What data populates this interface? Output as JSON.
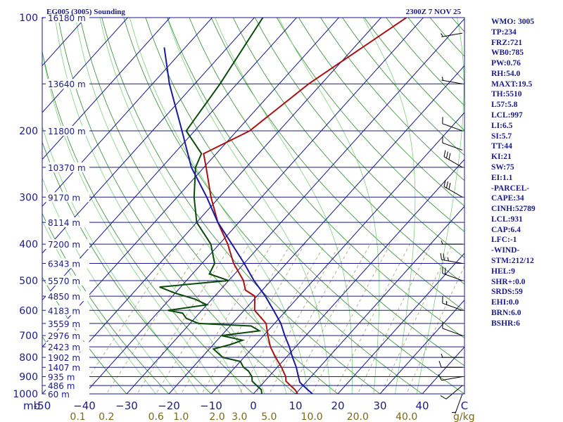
{
  "header": {
    "station": "EG005 (3005) Sounding",
    "datetime": "2300Z  7 NOV 25"
  },
  "indices": [
    "WMO: 3005",
    "TP:234",
    "FRZ:721",
    "WB0:785",
    "PW:0.76",
    "RH:54.0",
    "MAXT:19.5",
    "TH:5510",
    "L57:5.8",
    "LCL:997",
    "LI:6.5",
    "SI:5.7",
    "TT:44",
    "KI:21",
    "SW:75",
    "EI:1.1",
    "-PARCEL-",
    "CAPE:34",
    "CINH:52789",
    "LCL:931",
    "CAP:6.4",
    "LFC:-1",
    "-WIND-",
    "STM:212/12",
    "HEL:9",
    "SHR+:0.0",
    "SRDS:59",
    "EHI:0.0",
    "BRN:6.0",
    "BSHR:6"
  ],
  "chart_data": {
    "type": "line",
    "title": "EG005 (3005) Sounding",
    "pressure_unit": "mb",
    "mixing_ratio_unit": "g/kg",
    "xlim": [
      -50,
      50
    ],
    "ylim": [
      1000,
      100
    ],
    "temperature_ticks": [
      -50,
      -40,
      -30,
      -20,
      -10,
      0,
      10,
      20,
      30,
      40,
      50
    ],
    "temperature_tick_labels": [
      "-50",
      "−40",
      "−30",
      "−20",
      "−10",
      "0",
      "10",
      "20",
      "30",
      "40",
      "C"
    ],
    "pressure_ticks": [
      {
        "p": 100,
        "label": "100"
      },
      {
        "p": 200,
        "label": "200"
      },
      {
        "p": 300,
        "label": "300"
      },
      {
        "p": 400,
        "label": "400"
      },
      {
        "p": 500,
        "label": "500"
      },
      {
        "p": 600,
        "label": "600"
      },
      {
        "p": 700,
        "label": "700"
      },
      {
        "p": 800,
        "label": "800"
      },
      {
        "p": 900,
        "label": "900"
      },
      {
        "p": 1000,
        "label": "1000"
      }
    ],
    "height_levels": [
      {
        "p": 100,
        "label": "16180 m"
      },
      {
        "p": 150,
        "label": "13640 m"
      },
      {
        "p": 200,
        "label": "11800 m"
      },
      {
        "p": 250,
        "label": "10370 m"
      },
      {
        "p": 300,
        "label": "9170 m"
      },
      {
        "p": 350,
        "label": "8114 m"
      },
      {
        "p": 400,
        "label": "7200 m"
      },
      {
        "p": 450,
        "label": "6343 m"
      },
      {
        "p": 500,
        "label": "5570 m"
      },
      {
        "p": 550,
        "label": "4850 m"
      },
      {
        "p": 600,
        "label": "4183 m"
      },
      {
        "p": 650,
        "label": "3559 m"
      },
      {
        "p": 700,
        "label": "2976 m"
      },
      {
        "p": 750,
        "label": "2423 m"
      },
      {
        "p": 800,
        "label": "1902 m"
      },
      {
        "p": 850,
        "label": "1407 m"
      },
      {
        "p": 900,
        "label": "935 m"
      },
      {
        "p": 950,
        "label": "486 m"
      },
      {
        "p": 1000,
        "label": "60 m"
      }
    ],
    "mixing_ratio_labels": [
      {
        "w": 0.1,
        "label": "0.1"
      },
      {
        "w": 0.2,
        "label": "0.2"
      },
      {
        "w": 0.6,
        "label": "0.6"
      },
      {
        "w": 1.0,
        "label": "1.0"
      },
      {
        "w": 2.0,
        "label": "2.0"
      },
      {
        "w": 3.0,
        "label": "3.0"
      },
      {
        "w": 5.0,
        "label": "5.0"
      },
      {
        "w": 10.0,
        "label": "10.0"
      },
      {
        "w": 20.0,
        "label": "20.0"
      },
      {
        "w": 40.0,
        "label": "40.0"
      }
    ],
    "series": [
      {
        "name": "Temperature",
        "color": "#aa1111",
        "points": [
          {
            "p": 1000,
            "t": 10.5
          },
          {
            "p": 975,
            "t": 9.0
          },
          {
            "p": 950,
            "t": 7.0
          },
          {
            "p": 925,
            "t": 5.0
          },
          {
            "p": 900,
            "t": 4.0
          },
          {
            "p": 850,
            "t": 1.0
          },
          {
            "p": 800,
            "t": -2.5
          },
          {
            "p": 750,
            "t": -6.0
          },
          {
            "p": 700,
            "t": -9.0
          },
          {
            "p": 650,
            "t": -12.0
          },
          {
            "p": 600,
            "t": -17.5
          },
          {
            "p": 550,
            "t": -20.5
          },
          {
            "p": 530,
            "t": -24.0
          },
          {
            "p": 500,
            "t": -26.5
          },
          {
            "p": 450,
            "t": -32.5
          },
          {
            "p": 400,
            "t": -38.0
          },
          {
            "p": 350,
            "t": -45.0
          },
          {
            "p": 300,
            "t": -52.0
          },
          {
            "p": 250,
            "t": -59.5
          },
          {
            "p": 230,
            "t": -63.0
          },
          {
            "p": 200,
            "t": -57.0
          },
          {
            "p": 150,
            "t": -53.0
          },
          {
            "p": 100,
            "t": -44.0
          }
        ]
      },
      {
        "name": "Dewpoint",
        "color": "#0a4a0a",
        "points": [
          {
            "p": 1000,
            "t": 2.0
          },
          {
            "p": 975,
            "t": 1.0
          },
          {
            "p": 950,
            "t": -1.0
          },
          {
            "p": 925,
            "t": -3.0
          },
          {
            "p": 900,
            "t": -4.0
          },
          {
            "p": 870,
            "t": -6.0
          },
          {
            "p": 850,
            "t": -8.0
          },
          {
            "p": 820,
            "t": -10.0
          },
          {
            "p": 800,
            "t": -15.0
          },
          {
            "p": 780,
            "t": -17.0
          },
          {
            "p": 760,
            "t": -19.0
          },
          {
            "p": 740,
            "t": -16.0
          },
          {
            "p": 720,
            "t": -14.0
          },
          {
            "p": 700,
            "t": -20.0
          },
          {
            "p": 680,
            "t": -12.0
          },
          {
            "p": 660,
            "t": -15.0
          },
          {
            "p": 650,
            "t": -28.0
          },
          {
            "p": 630,
            "t": -32.0
          },
          {
            "p": 610,
            "t": -34.0
          },
          {
            "p": 600,
            "t": -38.0
          },
          {
            "p": 580,
            "t": -30.0
          },
          {
            "p": 560,
            "t": -34.0
          },
          {
            "p": 540,
            "t": -40.0
          },
          {
            "p": 520,
            "t": -45.0
          },
          {
            "p": 500,
            "t": -30.0
          },
          {
            "p": 480,
            "t": -36.0
          },
          {
            "p": 450,
            "t": -37.0
          },
          {
            "p": 400,
            "t": -42.0
          },
          {
            "p": 350,
            "t": -50.0
          },
          {
            "p": 300,
            "t": -56.0
          },
          {
            "p": 250,
            "t": -62.0
          },
          {
            "p": 230,
            "t": -63.5
          },
          {
            "p": 200,
            "t": -72.0
          },
          {
            "p": 150,
            "t": -74.0
          },
          {
            "p": 100,
            "t": -78.0
          }
        ]
      },
      {
        "name": "Parcel",
        "color": "#1a1aa0",
        "points": [
          {
            "p": 1000,
            "t": 14.0
          },
          {
            "p": 975,
            "t": 12.0
          },
          {
            "p": 950,
            "t": 10.0
          },
          {
            "p": 931,
            "t": 8.5
          },
          {
            "p": 900,
            "t": 7.0
          },
          {
            "p": 850,
            "t": 4.5
          },
          {
            "p": 800,
            "t": 1.5
          },
          {
            "p": 750,
            "t": -1.5
          },
          {
            "p": 700,
            "t": -5.0
          },
          {
            "p": 650,
            "t": -8.5
          },
          {
            "p": 600,
            "t": -13.0
          },
          {
            "p": 550,
            "t": -18.0
          },
          {
            "p": 500,
            "t": -24.0
          },
          {
            "p": 450,
            "t": -30.0
          },
          {
            "p": 400,
            "t": -37.0
          },
          {
            "p": 350,
            "t": -45.0
          },
          {
            "p": 300,
            "t": -53.0
          },
          {
            "p": 250,
            "t": -63.0
          },
          {
            "p": 200,
            "t": -73.0
          },
          {
            "p": 150,
            "t": -86.0
          },
          {
            "p": 120,
            "t": -95.0
          }
        ]
      }
    ],
    "wind_barbs": [
      {
        "p": 1000,
        "dir": 200,
        "spd": 5
      },
      {
        "p": 950,
        "dir": 230,
        "spd": 10
      },
      {
        "p": 900,
        "dir": 260,
        "spd": 10
      },
      {
        "p": 850,
        "dir": 270,
        "spd": 10
      },
      {
        "p": 800,
        "dir": 270,
        "spd": 5
      },
      {
        "p": 700,
        "dir": 290,
        "spd": 10
      },
      {
        "p": 600,
        "dir": 290,
        "spd": 15
      },
      {
        "p": 500,
        "dir": 290,
        "spd": 20
      },
      {
        "p": 450,
        "dir": 280,
        "spd": 25
      },
      {
        "p": 400,
        "dir": 270,
        "spd": 5
      },
      {
        "p": 300,
        "dir": 300,
        "spd": 30
      },
      {
        "p": 250,
        "dir": 300,
        "spd": 30
      },
      {
        "p": 225,
        "dir": 290,
        "spd": 10
      },
      {
        "p": 200,
        "dir": 290,
        "spd": 10
      },
      {
        "p": 150,
        "dir": 280,
        "spd": 5
      },
      {
        "p": 110,
        "dir": 260,
        "spd": 5
      }
    ]
  }
}
